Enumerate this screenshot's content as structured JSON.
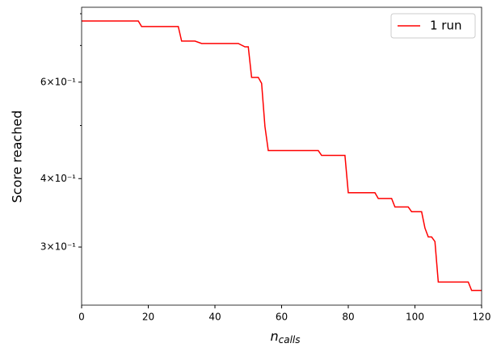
{
  "chart_data": {
    "type": "line",
    "xlabel": "n",
    "xlabel_sub": "calls",
    "ylabel": "Score reached",
    "x": [
      0,
      17,
      18,
      29,
      30,
      34,
      36,
      47,
      49,
      50,
      51,
      53,
      54,
      55,
      56,
      71,
      72,
      79,
      80,
      88,
      89,
      93,
      94,
      98,
      99,
      102,
      103,
      104,
      105,
      106,
      107,
      116,
      117,
      120
    ],
    "series": [
      {
        "name": "1 run",
        "color": "#ff0000",
        "values": [
          0.776,
          0.776,
          0.758,
          0.758,
          0.713,
          0.713,
          0.706,
          0.706,
          0.696,
          0.696,
          0.612,
          0.612,
          0.597,
          0.498,
          0.45,
          0.45,
          0.441,
          0.441,
          0.377,
          0.377,
          0.368,
          0.368,
          0.355,
          0.355,
          0.348,
          0.348,
          0.325,
          0.313,
          0.313,
          0.307,
          0.259,
          0.259,
          0.25,
          0.25
        ]
      }
    ],
    "xlim": [
      0,
      120
    ],
    "xticks": [
      0,
      20,
      40,
      60,
      80,
      100,
      120
    ],
    "ylim": [
      0.235,
      0.822
    ],
    "ylog": true,
    "yticks": [
      {
        "value": 0.3,
        "label": "3×10⁻¹"
      },
      {
        "value": 0.4,
        "label": "4×10⁻¹"
      },
      {
        "value": 0.6,
        "label": "6×10⁻¹"
      }
    ],
    "yminorticks": [
      0.5,
      0.7,
      0.8
    ],
    "grid": false,
    "legend": "upper right"
  }
}
